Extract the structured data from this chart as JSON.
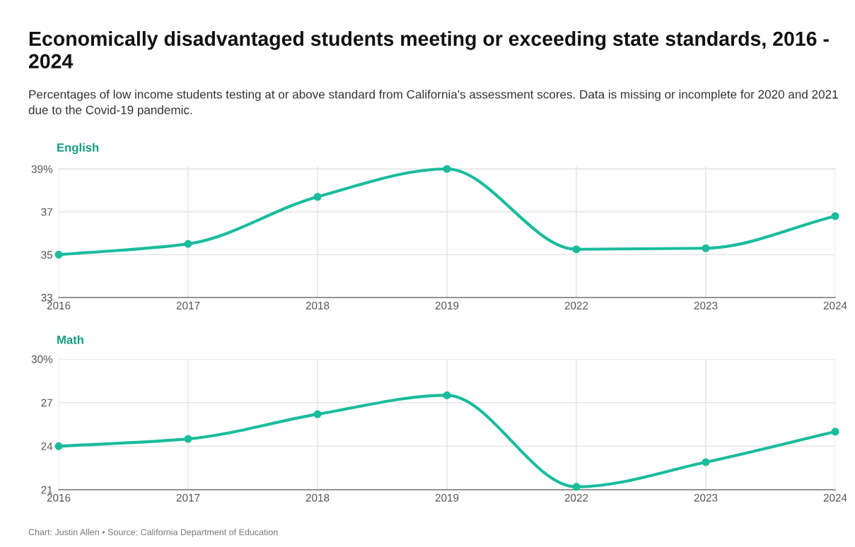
{
  "chart_data": [
    {
      "type": "line",
      "title": "Economically disadvantaged students meeting or exceeding state standards, 2016 - 2024",
      "subtitle": "Percentages of low income students testing at or above standard from California's assessment scores. Data is missing or incomplete for 2020 and 2021 due to the Covid-19 pandemic.",
      "ylabel": "English",
      "categories": [
        "2016",
        "2017",
        "2018",
        "2019",
        "2022",
        "2023",
        "2024"
      ],
      "series": [
        {
          "color": "#1abc9c",
          "values": [
            35.0,
            35.5,
            37.7,
            39.0,
            35.25,
            35.3,
            36.8
          ]
        }
      ],
      "ylim": [
        33,
        39.1
      ],
      "yticks": [
        33,
        35,
        37,
        {
          "value": 39,
          "label": "39%"
        }
      ],
      "grid": true,
      "marker": "circle",
      "line_style": "solid"
    },
    {
      "type": "line",
      "ylabel": "Math",
      "categories": [
        "2016",
        "2017",
        "2018",
        "2019",
        "2022",
        "2023",
        "2024"
      ],
      "series": [
        {
          "color": "#1abc9c",
          "values": [
            24.0,
            24.5,
            26.2,
            27.5,
            21.2,
            22.9,
            25.0
          ]
        }
      ],
      "ylim": [
        21,
        30
      ],
      "yticks": [
        21,
        24,
        27,
        {
          "value": 30,
          "label": "30%"
        }
      ],
      "grid": true,
      "marker": "circle",
      "line_style": "solid",
      "annotations": [
        "Chart: Justin Allen • Source: California Department of Education"
      ]
    }
  ]
}
